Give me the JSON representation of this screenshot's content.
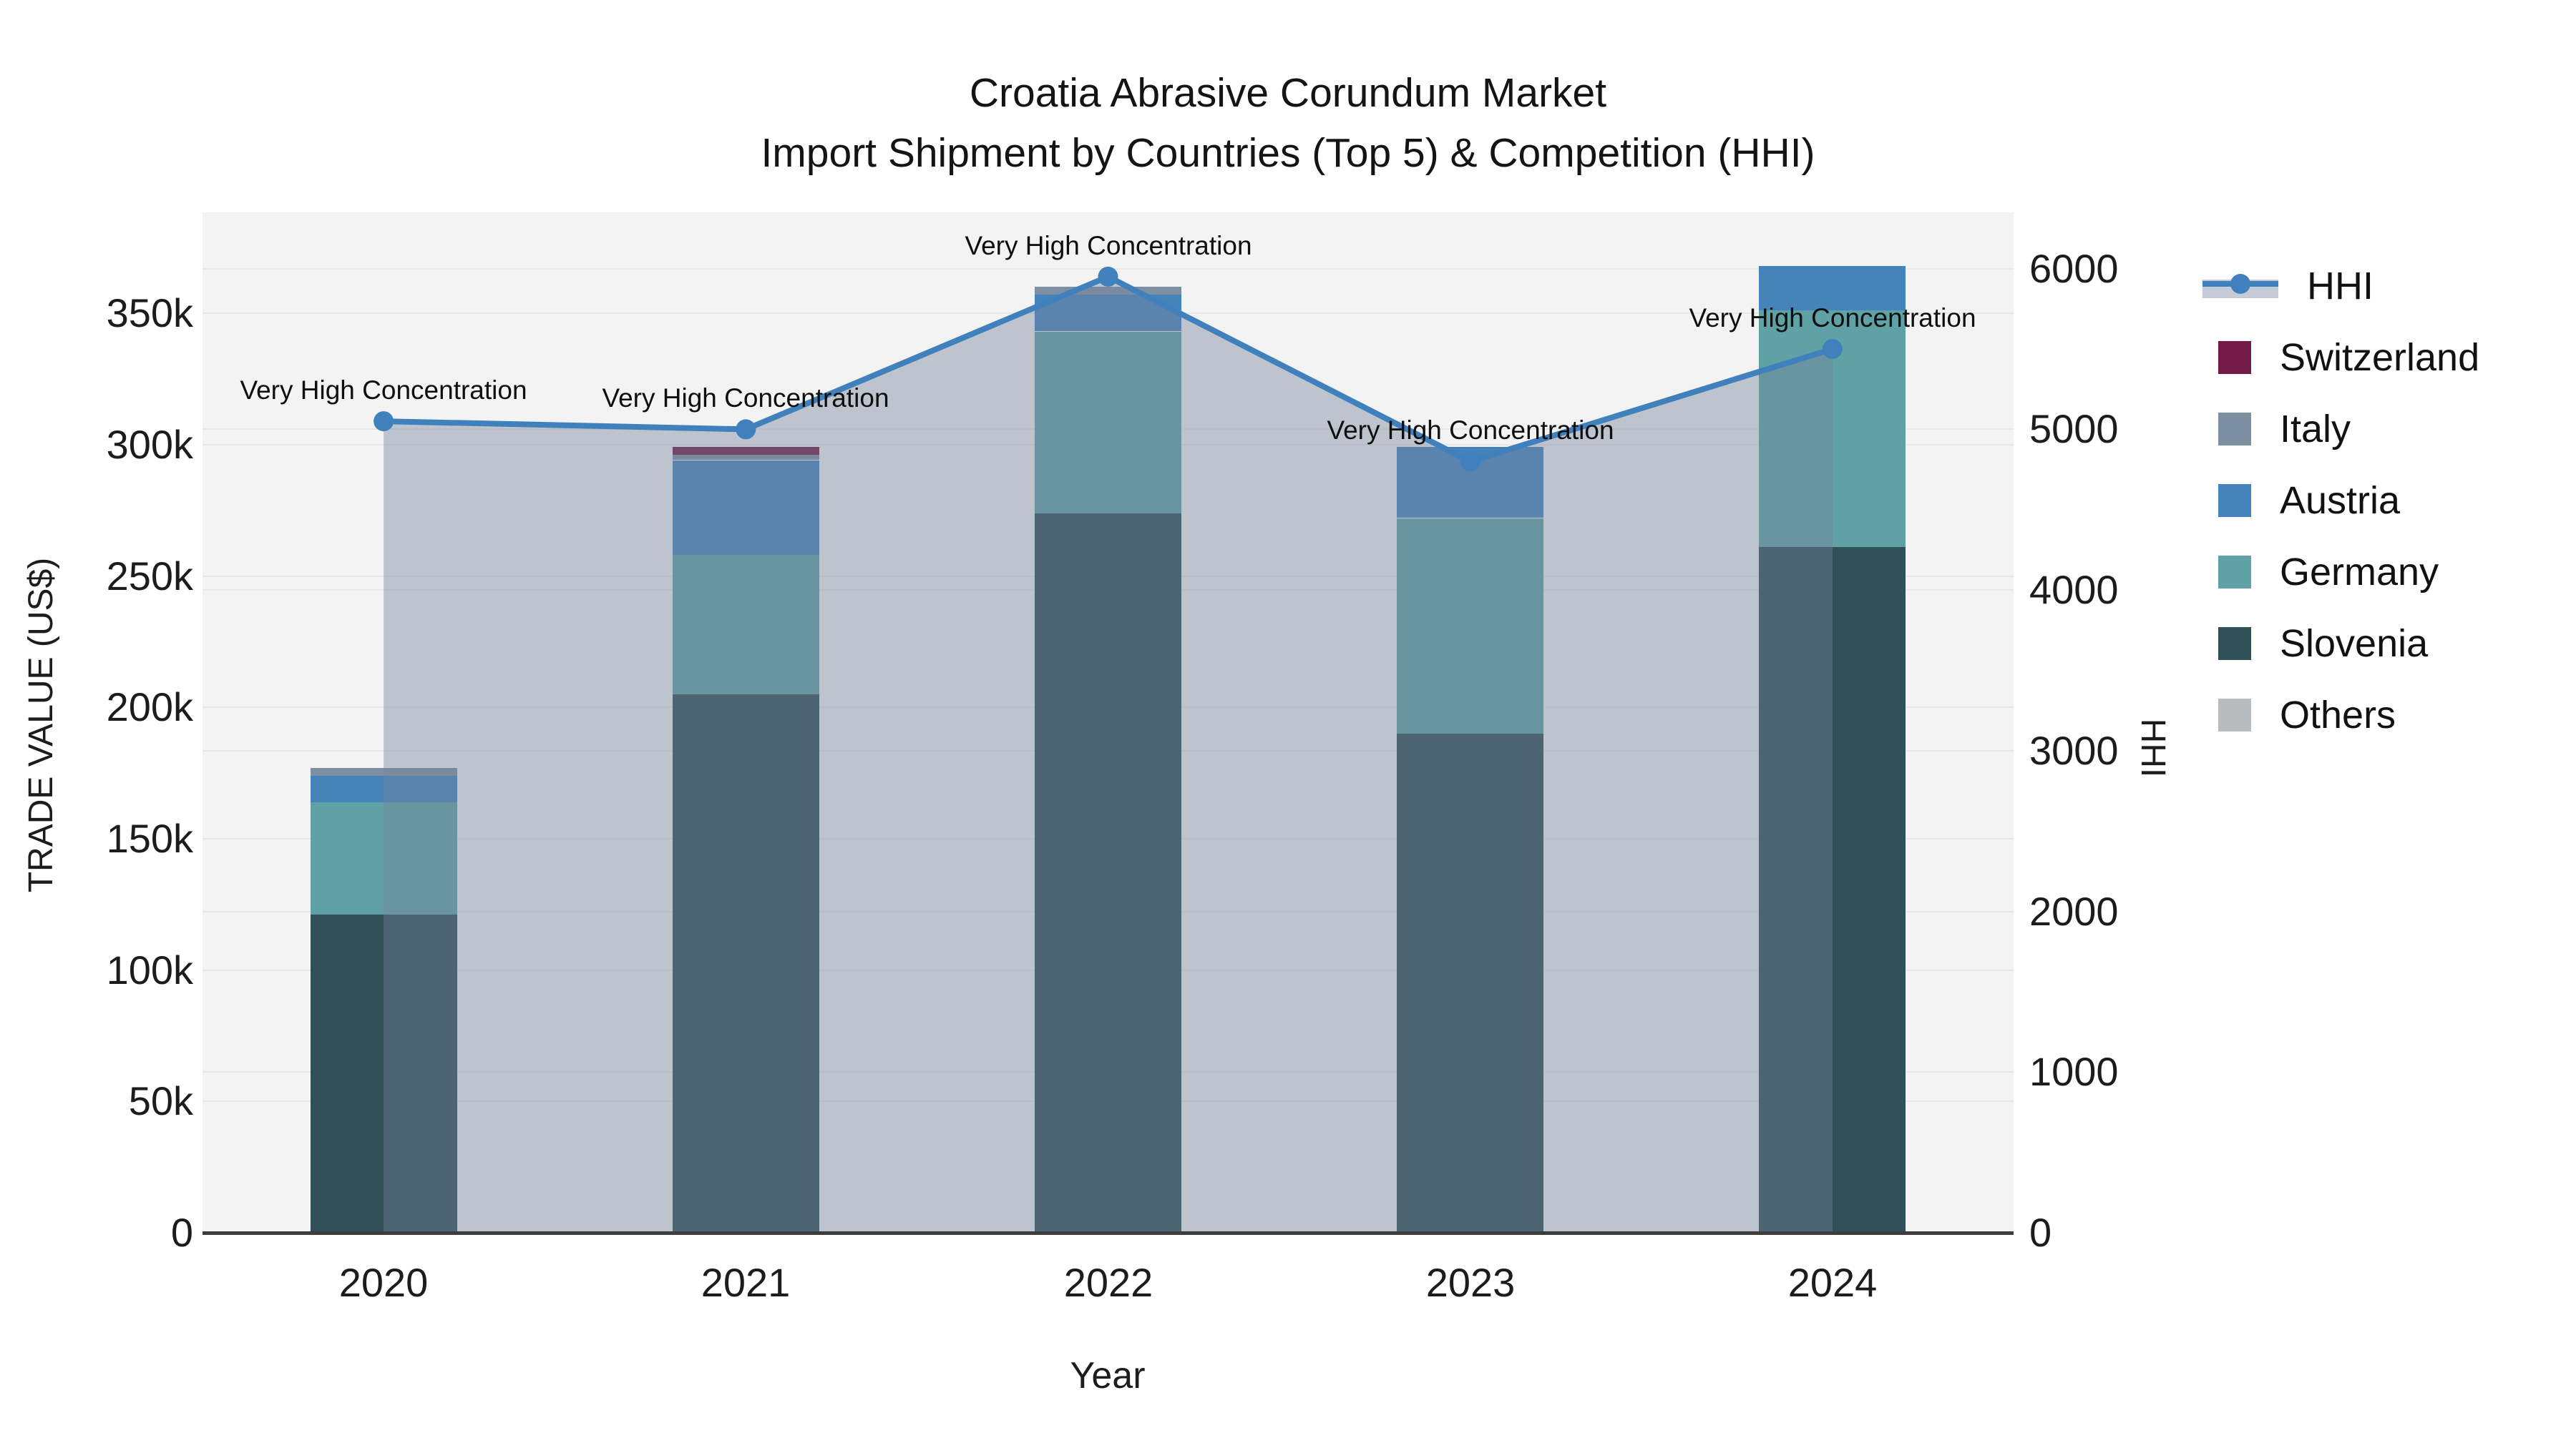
{
  "title": {
    "line1": "Croatia Abrasive Corundum Market",
    "line2": "Import Shipment by Countries (Top 5) & Competition (HHI)"
  },
  "axes": {
    "y_left_title": "TRADE VALUE (US$)",
    "y_right_title": "HHI",
    "x_title": "Year",
    "y_left_ticks": [
      {
        "label": "0",
        "value": 0
      },
      {
        "label": "50k",
        "value": 50000
      },
      {
        "label": "100k",
        "value": 100000
      },
      {
        "label": "150k",
        "value": 150000
      },
      {
        "label": "200k",
        "value": 200000
      },
      {
        "label": "250k",
        "value": 250000
      },
      {
        "label": "300k",
        "value": 300000
      },
      {
        "label": "350k",
        "value": 350000
      }
    ],
    "y_right_ticks": [
      {
        "label": "0",
        "value": 0
      },
      {
        "label": "1000",
        "value": 1000
      },
      {
        "label": "2000",
        "value": 2000
      },
      {
        "label": "3000",
        "value": 3000
      },
      {
        "label": "4000",
        "value": 4000
      },
      {
        "label": "5000",
        "value": 5000
      },
      {
        "label": "6000",
        "value": 6000
      }
    ]
  },
  "legend": {
    "items": [
      {
        "label": "HHI",
        "type": "line",
        "color": "#4080bd"
      },
      {
        "label": "Switzerland",
        "type": "square",
        "color": "#731b47"
      },
      {
        "label": "Italy",
        "type": "square",
        "color": "#7d8fa3"
      },
      {
        "label": "Austria",
        "type": "square",
        "color": "#4583bb"
      },
      {
        "label": "Germany",
        "type": "square",
        "color": "#5fa1a4"
      },
      {
        "label": "Slovenia",
        "type": "square",
        "color": "#2f5056"
      },
      {
        "label": "Others",
        "type": "square",
        "color": "#b9bcbe"
      }
    ]
  },
  "annotation_text": "Very High Concentration",
  "chart_data": {
    "type": "bar",
    "subtype": "stacked-bars-with-line",
    "title": "Croatia Abrasive Corundum Market — Import Shipment by Countries (Top 5) & Competition (HHI)",
    "xlabel": "Year",
    "ylabel_left": "TRADE VALUE (US$)",
    "ylabel_right": "HHI",
    "categories": [
      "2020",
      "2021",
      "2022",
      "2023",
      "2024"
    ],
    "stack_order_bottom_to_top": [
      "Slovenia",
      "Germany",
      "Austria",
      "Italy",
      "Switzerland",
      "Others"
    ],
    "series": [
      {
        "name": "Switzerland",
        "color": "#731b47",
        "values": [
          0,
          3000,
          0,
          0,
          0
        ]
      },
      {
        "name": "Italy",
        "color": "#7d8fa3",
        "values": [
          3000,
          2000,
          3000,
          0,
          0
        ]
      },
      {
        "name": "Austria",
        "color": "#4583bb",
        "values": [
          10000,
          36000,
          14000,
          27000,
          17000
        ]
      },
      {
        "name": "Germany",
        "color": "#5fa1a4",
        "values": [
          43000,
          53000,
          69000,
          82000,
          90000
        ]
      },
      {
        "name": "Slovenia",
        "color": "#2f5056",
        "values": [
          121000,
          205000,
          274000,
          190000,
          261000
        ]
      },
      {
        "name": "Others",
        "color": "#b9bcbe",
        "values": [
          0,
          0,
          0,
          0,
          0
        ]
      }
    ],
    "bar_totals": [
      177000,
      299000,
      360000,
      299000,
      368000
    ],
    "hhi_line": {
      "name": "HHI",
      "color": "#4080bd",
      "area_fill": "rgba(120,132,156,0.42)",
      "values": [
        5050,
        5000,
        5950,
        4800,
        5500
      ],
      "point_annotations": [
        "Very High Concentration",
        "Very High Concentration",
        "Very High Concentration",
        "Very High Concentration",
        "Very High Concentration"
      ]
    },
    "ylim_left": [
      0,
      388000
    ],
    "ylim_right": [
      0,
      6350
    ],
    "grid": true,
    "legend_position": "right"
  }
}
